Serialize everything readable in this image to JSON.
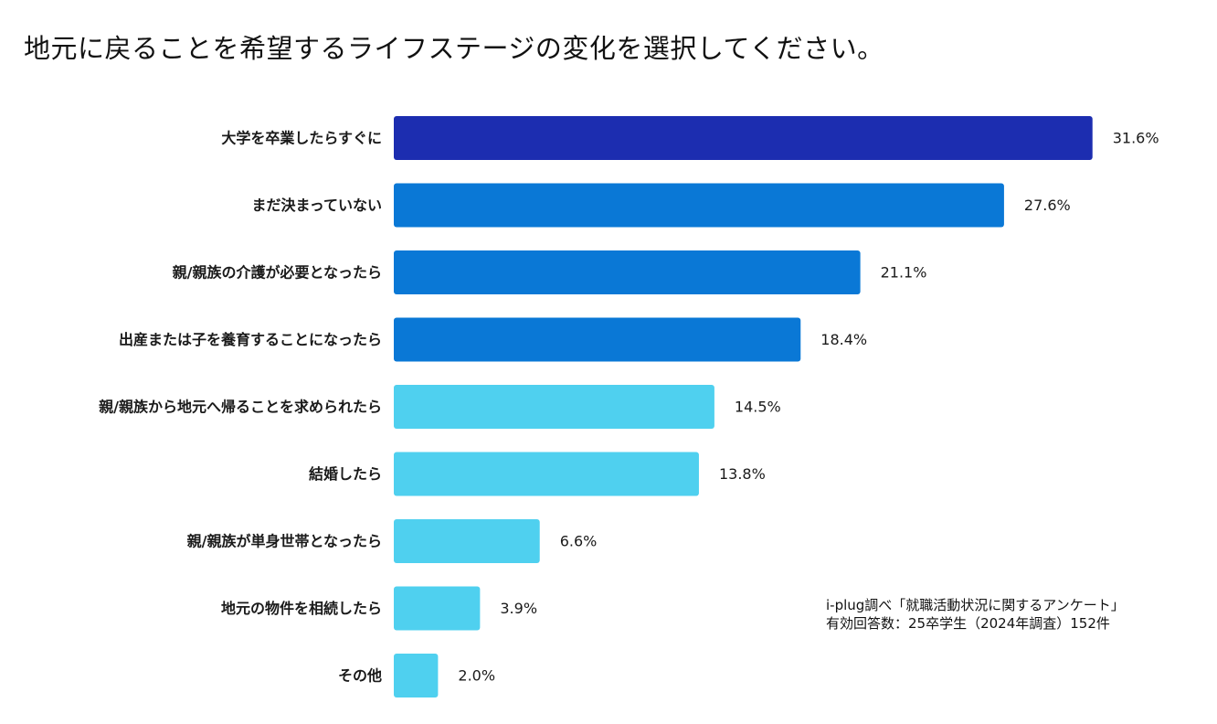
{
  "title": "地元に戻ることを希望するライフステージの変化を選択してください。",
  "source": {
    "line1": "i-plug調べ「就職活動状況に関するアンケート」",
    "line2": "有効回答数：25卒学生（2024年調査）152件"
  },
  "chart_data": {
    "type": "bar",
    "orientation": "horizontal",
    "title": "地元に戻ることを希望するライフステージの変化を選択してください。",
    "categories": [
      "大学を卒業したらすぐに",
      "まだ決まっていない",
      "親/親族の介護が必要となったら",
      "出産または子を養育することになったら",
      "親/親族から地元へ帰ることを求められたら",
      "結婚したら",
      "親/親族が単身世帯となったら",
      "地元の物件を相続したら",
      "その他"
    ],
    "values": [
      31.6,
      27.6,
      21.1,
      18.4,
      14.5,
      13.8,
      6.6,
      3.9,
      2.0
    ],
    "value_labels": [
      "31.6%",
      "27.6%",
      "21.1%",
      "18.4%",
      "14.5%",
      "13.8%",
      "6.6%",
      "3.9%",
      "2.0%"
    ],
    "colors": [
      "#1c2db0",
      "#0a78d6",
      "#0a78d6",
      "#0a78d6",
      "#4fd0ef",
      "#4fd0ef",
      "#4fd0ef",
      "#4fd0ef",
      "#4fd0ef"
    ],
    "xlabel": "",
    "ylabel": "",
    "unit": "%",
    "grid": false,
    "legend": "none"
  }
}
